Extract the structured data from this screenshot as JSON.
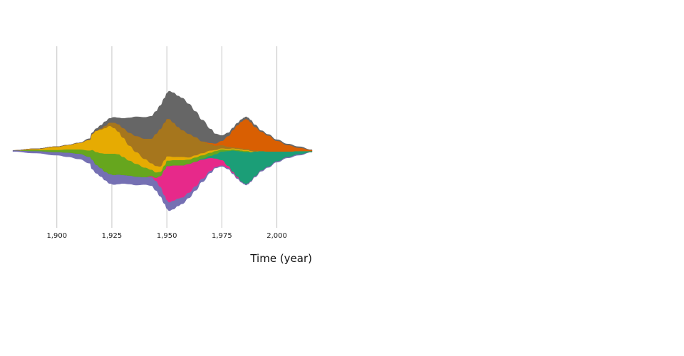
{
  "chart_data": {
    "type": "area",
    "subtype": "streamgraph",
    "xlabel": "Time (year)",
    "ylabel": "",
    "xlim": [
      1880,
      2016
    ],
    "x_ticks": [
      1900,
      1925,
      1950,
      1975,
      2000
    ],
    "x_tick_labels": [
      "1,900",
      "1,925",
      "1,950",
      "1,975",
      "2,000"
    ],
    "grid": "vertical",
    "legend": "none",
    "x": [
      1880,
      1890,
      1900,
      1905,
      1910,
      1915,
      1916,
      1918,
      1920,
      1922,
      1924,
      1926,
      1928,
      1930,
      1933,
      1936,
      1940,
      1943,
      1945,
      1947,
      1949,
      1950,
      1951,
      1953,
      1955,
      1957,
      1960,
      1963,
      1966,
      1970,
      1972,
      1975,
      1978,
      1980,
      1982,
      1984,
      1985,
      1986,
      1987,
      1988,
      1990,
      1993,
      1996,
      2000,
      2005,
      2010,
      2016
    ],
    "series": [
      {
        "color": "#7570b3",
        "values": [
          1,
          2,
          3,
          4,
          5,
          6,
          9,
          8,
          8,
          8,
          9,
          9,
          9,
          8,
          8,
          8,
          7,
          8,
          9,
          9,
          8,
          8,
          8,
          8,
          7,
          6,
          5,
          4,
          3,
          2,
          1,
          1,
          1,
          1,
          1,
          1,
          1,
          1,
          1,
          1,
          1,
          1,
          1,
          1,
          1,
          1,
          0
        ]
      },
      {
        "color": "#e7298a",
        "values": [
          0,
          0,
          0,
          0,
          0,
          0,
          0,
          0,
          0,
          0,
          0,
          0,
          0,
          0,
          0,
          0,
          0,
          1,
          3,
          10,
          24,
          32,
          34,
          33,
          31,
          30,
          27,
          23,
          18,
          12,
          8,
          5,
          2,
          1,
          1,
          0,
          0,
          0,
          0,
          0,
          0,
          0,
          0,
          0,
          0,
          0,
          0
        ]
      },
      {
        "color": "#1b9e77",
        "values": [
          0,
          0,
          0,
          0,
          0,
          0,
          0,
          0,
          0,
          0,
          0,
          0,
          0,
          0,
          0,
          0,
          0,
          0,
          0,
          0,
          0,
          0,
          0,
          0,
          0,
          0,
          0,
          0,
          1,
          2,
          4,
          8,
          14,
          20,
          24,
          28,
          29,
          30,
          29,
          27,
          23,
          18,
          14,
          9,
          5,
          3,
          1
        ]
      },
      {
        "color": "#66a61e",
        "values": [
          0,
          1,
          2,
          3,
          4,
          6,
          9,
          12,
          14,
          17,
          19,
          20,
          19,
          17,
          14,
          12,
          9,
          6,
          5,
          4,
          4,
          5,
          5,
          5,
          5,
          5,
          4,
          4,
          3,
          3,
          3,
          2,
          1,
          1,
          1,
          1,
          1,
          1,
          1,
          0,
          0,
          0,
          0,
          0,
          0,
          0,
          0
        ]
      },
      {
        "color": "#e6ab02",
        "values": [
          0,
          1,
          3,
          4,
          6,
          10,
          15,
          20,
          22,
          24,
          26,
          24,
          21,
          18,
          14,
          11,
          8,
          6,
          6,
          5,
          5,
          4,
          4,
          3,
          3,
          3,
          2,
          2,
          2,
          2,
          1,
          1,
          1,
          1,
          1,
          1,
          1,
          1,
          1,
          1,
          0,
          0,
          0,
          0,
          0,
          0,
          0
        ]
      },
      {
        "color": "#a6761d",
        "values": [
          0,
          0,
          0,
          0,
          0,
          0,
          0,
          0,
          1,
          2,
          3,
          5,
          7,
          9,
          12,
          15,
          19,
          23,
          30,
          35,
          35,
          35,
          35,
          32,
          28,
          25,
          22,
          17,
          11,
          6,
          4,
          3,
          2,
          1,
          1,
          1,
          1,
          1,
          1,
          1,
          1,
          0,
          0,
          0,
          0,
          0,
          0
        ]
      },
      {
        "color": "#d95f02",
        "values": [
          0,
          0,
          0,
          0,
          0,
          0,
          0,
          0,
          0,
          0,
          0,
          0,
          0,
          0,
          0,
          0,
          0,
          0,
          0,
          0,
          0,
          0,
          0,
          0,
          0,
          0,
          0,
          0,
          0,
          1,
          2,
          4,
          10,
          16,
          21,
          25,
          27,
          28,
          27,
          26,
          22,
          18,
          15,
          10,
          6,
          3,
          1
        ]
      },
      {
        "color": "#666666",
        "values": [
          0,
          0,
          0,
          0,
          0,
          1,
          1,
          2,
          3,
          4,
          4,
          5,
          6,
          9,
          14,
          18,
          20,
          21,
          21,
          22,
          23,
          24,
          26,
          28,
          29,
          30,
          28,
          24,
          20,
          13,
          9,
          5,
          3,
          2,
          2,
          2,
          2,
          2,
          2,
          2,
          2,
          1,
          1,
          1,
          1,
          1,
          0
        ]
      }
    ]
  }
}
